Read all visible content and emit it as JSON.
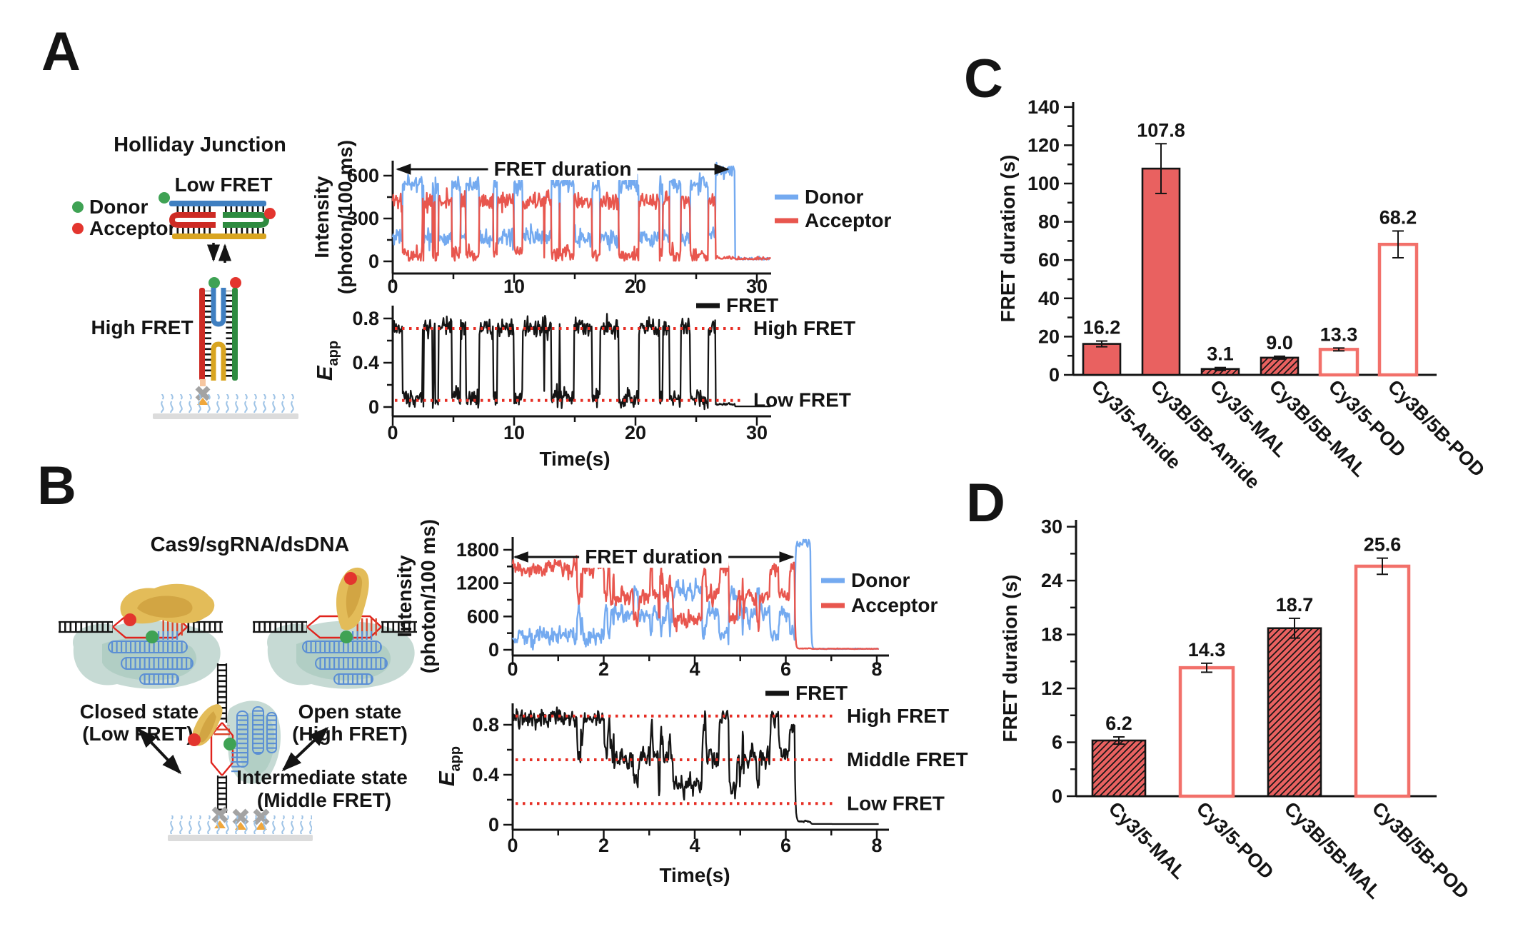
{
  "colors": {
    "bar_fill": "#e96160",
    "bar_edge": "#141414",
    "hollow_bar_edge": "#f2706a",
    "donor_blue": "#74aaf0",
    "acceptor_red": "#e8564e",
    "fret_trace_black": "#141414",
    "guide_red": "#e62e24"
  },
  "panelA": {
    "letter": "A",
    "diagram": {
      "title": "Holliday Junction",
      "low_fret_label": "Low FRET",
      "high_fret_label": "High FRET",
      "donor_label": "Donor",
      "acceptor_label": "Acceptor"
    }
  },
  "panelB": {
    "letter": "B",
    "diagram": {
      "title": "Cas9/sgRNA/dsDNA",
      "closed_state_line1": "Closed state",
      "closed_state_line2": "(Low FRET)",
      "open_state_line1": "Open state",
      "open_state_line2": "(High FRET)",
      "intermediate_state_line1": "Intermediate state",
      "intermediate_state_line2": "(Middle FRET)"
    }
  },
  "panelC": {
    "letter": "C"
  },
  "panelD": {
    "letter": "D"
  },
  "chart_data": [
    {
      "id": "a-intensity",
      "panel": "A",
      "type": "line",
      "show": "intensity",
      "ylabel_line1": "Intensity",
      "ylabel_line2": "(photon/100 ms)",
      "xlim": [
        0,
        31.5
      ],
      "x_ticks": [
        0,
        10,
        20,
        30
      ],
      "x_minor_ticks": [
        5,
        15,
        25
      ],
      "ylim": [
        0,
        700
      ],
      "y_ticks": [
        0,
        300,
        600
      ],
      "y_minor_ticks": [
        150,
        450
      ],
      "duration_arrow": {
        "label": "FRET duration",
        "x_start": 0.4,
        "x_end": 27.6
      },
      "legend": [
        {
          "label": "Donor",
          "color": "#74aaf0"
        },
        {
          "label": "Acceptor",
          "color": "#e8564e"
        }
      ],
      "series_model": {
        "kind": "two_state_smfret",
        "seed": 11,
        "dt": 0.055,
        "duration": 31.2,
        "fret_states": [
          0.72,
          0.08
        ],
        "mean_dwell_s": 0.8,
        "fret_noise": 0.045,
        "total_intensity": 590,
        "intensity_noise": 32,
        "acceptor_bleach_s": 26.6,
        "donor_bleach_s": 28.2,
        "donor_after_acceptor_bleach": 640,
        "clip_max": 690
      }
    },
    {
      "id": "a-fret",
      "panel": "A",
      "type": "line",
      "show": "fret",
      "ylabel_main": "E",
      "ylabel_sub": "app",
      "xlabel": "Time(s)",
      "xlim": [
        0,
        31.5
      ],
      "x_ticks": [
        0,
        10,
        20,
        30
      ],
      "x_minor_ticks": [
        5,
        15,
        25
      ],
      "ylim": [
        0,
        0.95
      ],
      "y_ticks": [
        0,
        0.4,
        0.8
      ],
      "y_minor_ticks": [
        0.2,
        0.6
      ],
      "dotted_guides": [
        {
          "value": 0.71,
          "label": "High FRET"
        },
        {
          "value": 0.06,
          "label": "Low FRET"
        }
      ],
      "legend": [
        {
          "label": "FRET",
          "color": "#141414"
        }
      ],
      "series_model": {
        "kind": "two_state_smfret",
        "seed": 11,
        "dt": 0.055,
        "duration": 31.2,
        "fret_states": [
          0.72,
          0.08
        ],
        "mean_dwell_s": 0.8,
        "fret_noise": 0.045,
        "total_intensity": 590,
        "intensity_noise": 32,
        "acceptor_bleach_s": 26.6,
        "donor_bleach_s": 28.2,
        "donor_after_acceptor_bleach": 640,
        "clip_max": 690
      }
    },
    {
      "id": "b-intensity",
      "panel": "B",
      "type": "line",
      "show": "intensity",
      "ylabel_line1": "Intensity",
      "ylabel_line2": "(photon/100 ms)",
      "xlim": [
        0,
        8.1
      ],
      "x_ticks": [
        0,
        2,
        4,
        6,
        8
      ],
      "x_minor_ticks": [
        1,
        3,
        5,
        7
      ],
      "ylim": [
        0,
        2000
      ],
      "y_ticks": [
        0,
        600,
        1200,
        1800
      ],
      "y_minor_ticks": [
        300,
        900,
        1500
      ],
      "duration_arrow": {
        "label": "FRET duration",
        "x_start": 0.05,
        "x_end": 6.15
      },
      "legend": [
        {
          "label": "Donor",
          "color": "#74aaf0"
        },
        {
          "label": "Acceptor",
          "color": "#e8564e"
        }
      ],
      "series_model": {
        "kind": "multi_state_smfret",
        "seed": 5,
        "dt": 0.012,
        "duration": 8.05,
        "fret_states": [
          0.84,
          0.55,
          0.3
        ],
        "mean_dwell_s": 0.16,
        "fret_noise": 0.07,
        "bias_high_until": 1.2,
        "smooth": true,
        "total_intensity": 1850,
        "donor_scale": 0.8,
        "acceptor_scale": 0.95,
        "intensity_noise": 130,
        "acceptor_bleach_s": 6.2,
        "donor_bleach_s": 6.55,
        "donor_after_acceptor_bleach": 1870,
        "clip_max": 1980
      }
    },
    {
      "id": "b-fret",
      "panel": "B",
      "type": "line",
      "show": "fret",
      "ylabel_main": "E",
      "ylabel_sub": "app",
      "xlabel": "Time(s)",
      "xlim": [
        0,
        8.1
      ],
      "x_ticks": [
        0,
        2,
        4,
        6,
        8
      ],
      "x_minor_ticks": [
        1,
        3,
        5,
        7
      ],
      "ylim": [
        0,
        0.95
      ],
      "y_ticks": [
        0,
        0.4,
        0.8
      ],
      "y_minor_ticks": [
        0.2,
        0.6
      ],
      "dotted_guides": [
        {
          "value": 0.87,
          "label": "High FRET"
        },
        {
          "value": 0.52,
          "label": "Middle FRET"
        },
        {
          "value": 0.17,
          "label": "Low FRET"
        }
      ],
      "legend": [
        {
          "label": "FRET",
          "color": "#141414"
        }
      ],
      "series_model": {
        "kind": "multi_state_smfret",
        "seed": 5,
        "dt": 0.012,
        "duration": 8.05,
        "fret_states": [
          0.84,
          0.55,
          0.3
        ],
        "mean_dwell_s": 0.16,
        "fret_noise": 0.07,
        "bias_high_until": 1.2,
        "smooth": true,
        "total_intensity": 1850,
        "donor_scale": 0.8,
        "acceptor_scale": 0.95,
        "intensity_noise": 130,
        "acceptor_bleach_s": 6.2,
        "donor_bleach_s": 6.55,
        "donor_after_acceptor_bleach": 1870,
        "clip_max": 1980
      }
    },
    {
      "id": "c-bars",
      "panel": "C",
      "type": "bar",
      "ylabel": "FRET duration (s)",
      "categories": [
        "Cy3/5-Amide",
        "Cy3B/5B-Amide",
        "Cy3/5-MAL",
        "Cy3B/5B-MAL",
        "Cy3/5-POD",
        "Cy3B/5B-POD"
      ],
      "values": [
        16.2,
        107.8,
        3.1,
        9.0,
        13.3,
        68.2
      ],
      "errors": [
        1.5,
        13.0,
        0.4,
        0.3,
        0.5,
        7.0
      ],
      "value_labels": [
        "16.2",
        "107.8",
        "3.1",
        "9.0",
        "13.3",
        "68.2"
      ],
      "bar_styles": [
        "solid",
        "solid",
        "hatch",
        "hatch",
        "hollow",
        "hollow"
      ],
      "ylim": [
        0,
        145
      ],
      "y_ticks": [
        0,
        20,
        40,
        60,
        80,
        100,
        120,
        140
      ],
      "y_minor_ticks": [
        10,
        30,
        50,
        70,
        90,
        110,
        130
      ]
    },
    {
      "id": "d-bars",
      "panel": "D",
      "type": "bar",
      "ylabel": "FRET duration (s)",
      "categories": [
        "Cy3/5-MAL",
        "Cy3/5-POD",
        "Cy3B/5B-MAL",
        "Cy3B/5B-POD"
      ],
      "values": [
        6.2,
        14.3,
        18.7,
        25.6
      ],
      "errors": [
        0.4,
        0.5,
        1.1,
        0.9
      ],
      "value_labels": [
        "6.2",
        "14.3",
        "18.7",
        "25.6"
      ],
      "bar_styles": [
        "hatch",
        "hollow",
        "hatch",
        "hollow"
      ],
      "ylim": [
        0,
        31
      ],
      "y_ticks": [
        0,
        6,
        12,
        18,
        24,
        30
      ],
      "y_minor_ticks": [
        3,
        9,
        15,
        21,
        27
      ]
    }
  ]
}
